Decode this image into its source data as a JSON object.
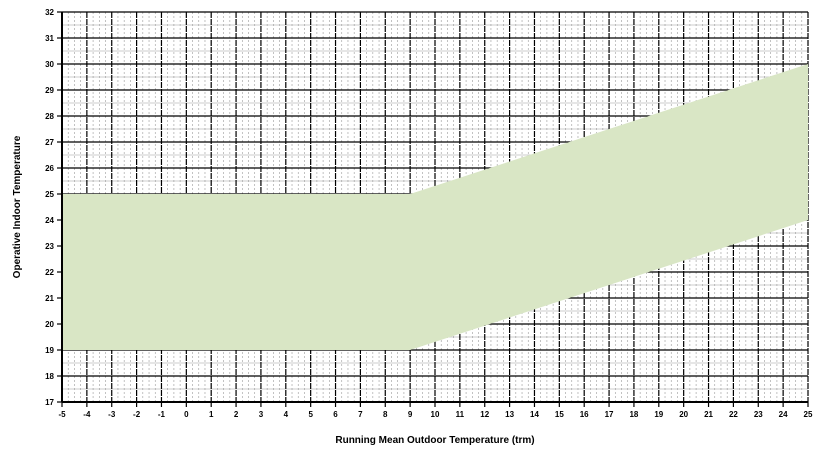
{
  "chart_data": {
    "type": "area",
    "title": "",
    "xlabel": "Running Mean Outdoor Temperature (trm)",
    "ylabel": "Operative Indoor Temperature",
    "xlim": [
      -5,
      25
    ],
    "ylim": [
      17,
      32
    ],
    "x_ticks": [
      -5,
      -4,
      -3,
      -2,
      -1,
      0,
      1,
      2,
      3,
      4,
      5,
      6,
      7,
      8,
      9,
      10,
      11,
      12,
      13,
      14,
      15,
      16,
      17,
      18,
      19,
      20,
      21,
      22,
      23,
      24,
      25
    ],
    "y_ticks": [
      17,
      18,
      19,
      20,
      21,
      22,
      23,
      24,
      25,
      26,
      27,
      28,
      29,
      30,
      31,
      32
    ],
    "x_tick_labels": [
      "-5",
      "-4",
      "-3",
      "-2",
      "-1",
      "0",
      "1",
      "2",
      "3",
      "4",
      "5",
      "6",
      "7",
      "8",
      "9",
      "10",
      "11",
      "12",
      "13",
      "14",
      "15",
      "16",
      "17",
      "18",
      "19",
      "20",
      "21",
      "22",
      "23",
      "24",
      "25"
    ],
    "y_tick_labels": [
      "17",
      "18",
      "19",
      "20",
      "21",
      "22",
      "23",
      "24",
      "25",
      "26",
      "27",
      "28",
      "29",
      "30",
      "31",
      "32"
    ],
    "grid": true,
    "band": {
      "upper": {
        "x": [
          -5,
          9,
          25
        ],
        "y": [
          25,
          25,
          30
        ]
      },
      "lower": {
        "x": [
          -5,
          9,
          25
        ],
        "y": [
          19,
          19,
          24
        ]
      }
    },
    "colors": {
      "band_fill": "#d9e6c5",
      "grid_line": "#000000",
      "axis_line": "#000000"
    }
  }
}
